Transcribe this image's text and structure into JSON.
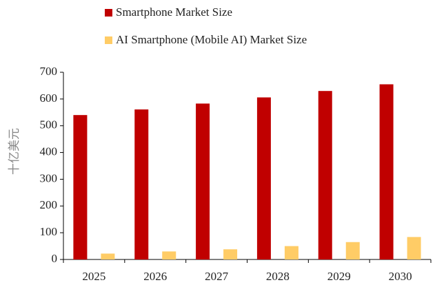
{
  "chart_data": {
    "type": "bar",
    "categories": [
      "2025",
      "2026",
      "2027",
      "2028",
      "2029",
      "2030"
    ],
    "series": [
      {
        "name": "Smartphone Market Size",
        "color": "#c00000",
        "values": [
          540,
          561,
          583,
          606,
          630,
          655
        ]
      },
      {
        "name": "AI Smartphone (Mobile AI) Market Size",
        "color": "#ffcc66",
        "values": [
          22,
          30,
          38,
          50,
          65,
          84
        ]
      }
    ],
    "ylabel": "十亿美元",
    "ylim": [
      0,
      700
    ],
    "yticks": [
      0,
      100,
      200,
      300,
      400,
      500,
      600,
      700
    ],
    "legend": "top"
  }
}
